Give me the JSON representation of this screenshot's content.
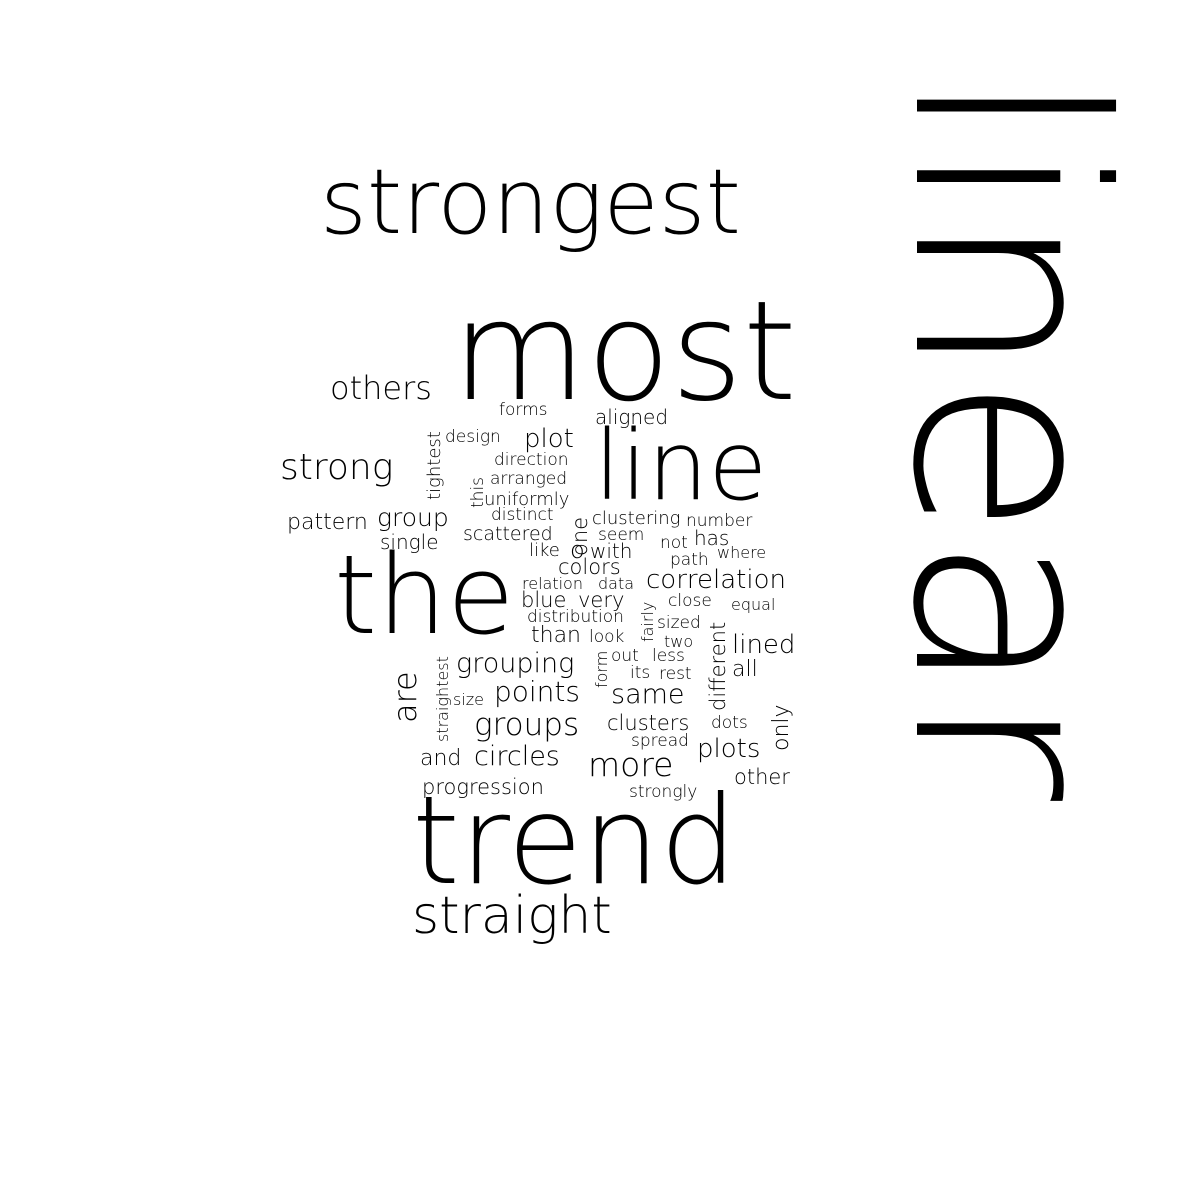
{
  "words": [
    {
      "id": "linear",
      "text": "linear",
      "color": "#000000",
      "weight": 1.0
    },
    {
      "id": "strongest",
      "text": "strongest",
      "color": "#000000",
      "weight": 0.55
    },
    {
      "id": "most",
      "text": "most",
      "color": "#000000",
      "weight": 0.8
    },
    {
      "id": "line",
      "text": "line",
      "color": "#000000",
      "weight": 0.55
    },
    {
      "id": "the",
      "text": "the",
      "color": "#000000",
      "weight": 0.65
    },
    {
      "id": "trend",
      "text": "trend",
      "color": "#000000",
      "weight": 0.75
    },
    {
      "id": "straight",
      "text": "straight",
      "color": "#000000",
      "weight": 0.35
    },
    {
      "id": "others",
      "text": "others",
      "color": "#000000",
      "weight": 0.2
    },
    {
      "id": "strong",
      "text": "strong",
      "color": "#000000",
      "weight": 0.23
    },
    {
      "id": "pattern",
      "text": "pattern",
      "color": "#000000",
      "weight": 0.15
    },
    {
      "id": "group",
      "text": "group",
      "color": "#000000",
      "weight": 0.17
    },
    {
      "id": "single",
      "text": "single",
      "color": "#000000",
      "weight": 0.13
    },
    {
      "id": "tightest",
      "text": "tightest",
      "color": "#000000",
      "weight": 0.12
    },
    {
      "id": "design",
      "text": "design",
      "color": "#000000",
      "weight": 0.11
    },
    {
      "id": "forms",
      "text": "forms",
      "color": "#000000",
      "weight": 0.11
    },
    {
      "id": "plot",
      "text": "plot",
      "color": "#000000",
      "weight": 0.17
    },
    {
      "id": "aligned",
      "text": "aligned",
      "color": "#000000",
      "weight": 0.14
    },
    {
      "id": "direction",
      "text": "direction",
      "color": "#000000",
      "weight": 0.12
    },
    {
      "id": "arranged",
      "text": "arranged",
      "color": "#000000",
      "weight": 0.12
    },
    {
      "id": "this",
      "text": "this",
      "color": "#000000",
      "weight": 0.11
    },
    {
      "id": "uniformly",
      "text": "uniformly",
      "color": "#000000",
      "weight": 0.12
    },
    {
      "id": "distinct",
      "text": "distinct",
      "color": "#000000",
      "weight": 0.12
    },
    {
      "id": "one",
      "text": "one",
      "color": "#000000",
      "weight": 0.15
    },
    {
      "id": "clustering",
      "text": "clustering",
      "color": "#000000",
      "weight": 0.13
    },
    {
      "id": "number",
      "text": "number",
      "color": "#000000",
      "weight": 0.12
    },
    {
      "id": "scattered",
      "text": "scattered",
      "color": "#000000",
      "weight": 0.13
    },
    {
      "id": "seem",
      "text": "seem",
      "color": "#000000",
      "weight": 0.12
    },
    {
      "id": "has",
      "text": "has",
      "color": "#000000",
      "weight": 0.13
    },
    {
      "id": "not",
      "text": "not",
      "color": "#000000",
      "weight": 0.12
    },
    {
      "id": "like",
      "text": "like",
      "color": "#000000",
      "weight": 0.12
    },
    {
      "id": "o",
      "text": "o",
      "color": "#000000",
      "weight": 0.15
    },
    {
      "id": "with",
      "text": "with",
      "color": "#000000",
      "weight": 0.13
    },
    {
      "id": "where",
      "text": "where",
      "color": "#000000",
      "weight": 0.12
    },
    {
      "id": "path",
      "text": "path",
      "color": "#000000",
      "weight": 0.12
    },
    {
      "id": "colors",
      "text": "colors",
      "color": "#000000",
      "weight": 0.14
    },
    {
      "id": "correlation",
      "text": "correlation",
      "color": "#000000",
      "weight": 0.2
    },
    {
      "id": "relation",
      "text": "relation",
      "color": "#000000",
      "weight": 0.12
    },
    {
      "id": "data",
      "text": "data",
      "color": "#000000",
      "weight": 0.12
    },
    {
      "id": "blue",
      "text": "blue",
      "color": "#000000",
      "weight": 0.14
    },
    {
      "id": "very",
      "text": "very",
      "color": "#000000",
      "weight": 0.14
    },
    {
      "id": "fairly",
      "text": "fairly",
      "color": "#000000",
      "weight": 0.11
    },
    {
      "id": "close",
      "text": "close",
      "color": "#000000",
      "weight": 0.12
    },
    {
      "id": "equal",
      "text": "equal",
      "color": "#000000",
      "weight": 0.12
    },
    {
      "id": "distribution",
      "text": "distribution",
      "color": "#000000",
      "weight": 0.13
    },
    {
      "id": "sized",
      "text": "sized",
      "color": "#000000",
      "weight": 0.12
    },
    {
      "id": "form",
      "text": "form",
      "color": "#000000",
      "weight": 0.12
    },
    {
      "id": "than",
      "text": "than",
      "color": "#000000",
      "weight": 0.15
    },
    {
      "id": "look",
      "text": "look",
      "color": "#000000",
      "weight": 0.12
    },
    {
      "id": "two",
      "text": "two",
      "color": "#000000",
      "weight": 0.12
    },
    {
      "id": "different",
      "text": "different",
      "color": "#000000",
      "weight": 0.14
    },
    {
      "id": "lined",
      "text": "lined",
      "color": "#000000",
      "weight": 0.17
    },
    {
      "id": "are",
      "text": "are",
      "color": "#000000",
      "weight": 0.2
    },
    {
      "id": "straightest",
      "text": "straightest",
      "color": "#000000",
      "weight": 0.11
    },
    {
      "id": "grouping",
      "text": "grouping",
      "color": "#000000",
      "weight": 0.18
    },
    {
      "id": "out",
      "text": "out",
      "color": "#000000",
      "weight": 0.12
    },
    {
      "id": "less",
      "text": "less",
      "color": "#000000",
      "weight": 0.12
    },
    {
      "id": "its",
      "text": "its",
      "color": "#000000",
      "weight": 0.12
    },
    {
      "id": "rest",
      "text": "rest",
      "color": "#000000",
      "weight": 0.12
    },
    {
      "id": "all",
      "text": "all",
      "color": "#000000",
      "weight": 0.15
    },
    {
      "id": "size",
      "text": "size",
      "color": "#000000",
      "weight": 0.12
    },
    {
      "id": "points",
      "text": "points",
      "color": "#000000",
      "weight": 0.18
    },
    {
      "id": "same",
      "text": "same",
      "color": "#000000",
      "weight": 0.18
    },
    {
      "id": "only",
      "text": "only",
      "color": "#000000",
      "weight": 0.15
    },
    {
      "id": "groups",
      "text": "groups",
      "color": "#000000",
      "weight": 0.2
    },
    {
      "id": "clusters",
      "text": "clusters",
      "color": "#000000",
      "weight": 0.15
    },
    {
      "id": "dots",
      "text": "dots",
      "color": "#000000",
      "weight": 0.12
    },
    {
      "id": "spread",
      "text": "spread",
      "color": "#000000",
      "weight": 0.12
    },
    {
      "id": "plots",
      "text": "plots",
      "color": "#000000",
      "weight": 0.17
    },
    {
      "id": "and",
      "text": "and",
      "color": "#000000",
      "weight": 0.15
    },
    {
      "id": "circles",
      "text": "circles",
      "color": "#000000",
      "weight": 0.18
    },
    {
      "id": "more",
      "text": "more",
      "color": "#000000",
      "weight": 0.22
    },
    {
      "id": "other",
      "text": "other",
      "color": "#000000",
      "weight": 0.15
    },
    {
      "id": "progression",
      "text": "progression",
      "color": "#000000",
      "weight": 0.15
    },
    {
      "id": "strongly",
      "text": "strongly",
      "color": "#000000",
      "weight": 0.12
    }
  ]
}
